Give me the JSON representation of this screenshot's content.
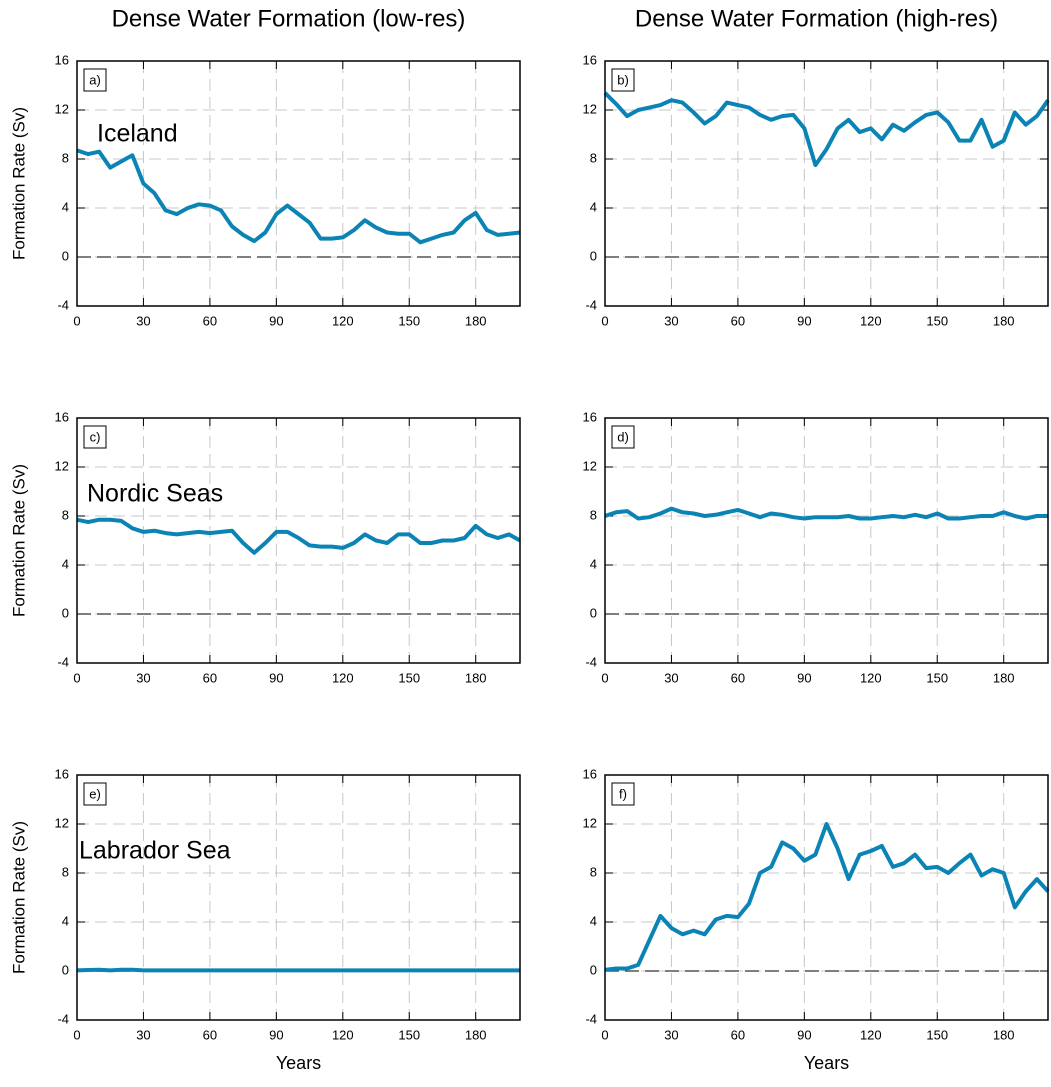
{
  "chart_data": [
    {
      "type": "line",
      "title": "Dense Water Formation (low-res)",
      "panel_label": "a)",
      "annotation": "Iceland",
      "ylabel": "Formation Rate (Sv)",
      "x": [
        0,
        5,
        10,
        15,
        20,
        25,
        30,
        35,
        40,
        45,
        50,
        55,
        60,
        65,
        70,
        75,
        80,
        85,
        90,
        95,
        100,
        105,
        110,
        115,
        120,
        125,
        130,
        135,
        140,
        145,
        150,
        155,
        160,
        165,
        170,
        175,
        180,
        185,
        190,
        195,
        200
      ],
      "series": [
        {
          "color": "#0b84b5",
          "values": [
            8.7,
            8.4,
            8.6,
            7.3,
            7.8,
            8.3,
            6.0,
            5.2,
            3.8,
            3.5,
            4.0,
            4.3,
            4.2,
            3.8,
            2.5,
            1.8,
            1.3,
            2.0,
            3.5,
            4.2,
            3.5,
            2.8,
            1.5,
            1.5,
            1.6,
            2.2,
            3.0,
            2.4,
            2.0,
            1.9,
            1.9,
            1.2,
            1.5,
            1.8,
            2.0,
            3.0,
            3.6,
            2.2,
            1.8,
            1.9,
            2.0
          ]
        }
      ],
      "xlim": [
        0,
        200
      ],
      "xticks": [
        0,
        30,
        60,
        90,
        120,
        150,
        180
      ],
      "ylim": [
        -4,
        16
      ],
      "yticks": [
        -4,
        0,
        4,
        8,
        12,
        16
      ],
      "grid": true,
      "reference_line": 0
    },
    {
      "type": "line",
      "title": "Dense Water Formation (high-res)",
      "panel_label": "b)",
      "x": [
        0,
        5,
        10,
        15,
        20,
        25,
        30,
        35,
        40,
        45,
        50,
        55,
        60,
        65,
        70,
        75,
        80,
        85,
        90,
        95,
        100,
        105,
        110,
        115,
        120,
        125,
        130,
        135,
        140,
        145,
        150,
        155,
        160,
        165,
        170,
        175,
        180,
        185,
        190,
        195,
        200
      ],
      "series": [
        {
          "color": "#0b84b5",
          "values": [
            13.4,
            12.5,
            11.5,
            12.0,
            12.2,
            12.4,
            12.8,
            12.6,
            11.8,
            10.9,
            11.5,
            12.6,
            12.4,
            12.2,
            11.6,
            11.2,
            11.5,
            11.6,
            10.5,
            7.5,
            8.8,
            10.5,
            11.2,
            10.2,
            10.5,
            9.6,
            10.8,
            10.3,
            11.0,
            11.6,
            11.8,
            11.0,
            9.5,
            9.5,
            11.2,
            9.0,
            9.5,
            11.8,
            10.8,
            11.5,
            12.8
          ]
        }
      ],
      "xlim": [
        0,
        200
      ],
      "xticks": [
        0,
        30,
        60,
        90,
        120,
        150,
        180
      ],
      "ylim": [
        -4,
        16
      ],
      "yticks": [
        -4,
        0,
        4,
        8,
        12,
        16
      ],
      "grid": true,
      "reference_line": 0
    },
    {
      "type": "line",
      "panel_label": "c)",
      "annotation": "Nordic Seas",
      "ylabel": "Formation Rate (Sv)",
      "x": [
        0,
        5,
        10,
        15,
        20,
        25,
        30,
        35,
        40,
        45,
        50,
        55,
        60,
        65,
        70,
        75,
        80,
        85,
        90,
        95,
        100,
        105,
        110,
        115,
        120,
        125,
        130,
        135,
        140,
        145,
        150,
        155,
        160,
        165,
        170,
        175,
        180,
        185,
        190,
        195,
        200
      ],
      "series": [
        {
          "color": "#0b84b5",
          "values": [
            7.7,
            7.5,
            7.7,
            7.7,
            7.6,
            7.0,
            6.7,
            6.8,
            6.6,
            6.5,
            6.6,
            6.7,
            6.6,
            6.7,
            6.8,
            5.8,
            5.0,
            5.8,
            6.7,
            6.7,
            6.2,
            5.6,
            5.5,
            5.5,
            5.4,
            5.8,
            6.5,
            6.0,
            5.8,
            6.5,
            6.5,
            5.8,
            5.8,
            6.0,
            6.0,
            6.2,
            7.2,
            6.5,
            6.2,
            6.5,
            6.0
          ]
        }
      ],
      "xlim": [
        0,
        200
      ],
      "xticks": [
        0,
        30,
        60,
        90,
        120,
        150,
        180
      ],
      "ylim": [
        -4,
        16
      ],
      "yticks": [
        -4,
        0,
        4,
        8,
        12,
        16
      ],
      "grid": true,
      "reference_line": 0
    },
    {
      "type": "line",
      "panel_label": "d)",
      "x": [
        0,
        5,
        10,
        15,
        20,
        25,
        30,
        35,
        40,
        45,
        50,
        55,
        60,
        65,
        70,
        75,
        80,
        85,
        90,
        95,
        100,
        105,
        110,
        115,
        120,
        125,
        130,
        135,
        140,
        145,
        150,
        155,
        160,
        165,
        170,
        175,
        180,
        185,
        190,
        195,
        200
      ],
      "series": [
        {
          "color": "#0b84b5",
          "values": [
            8.0,
            8.3,
            8.4,
            7.8,
            7.9,
            8.2,
            8.6,
            8.3,
            8.2,
            8.0,
            8.1,
            8.3,
            8.5,
            8.2,
            7.9,
            8.2,
            8.1,
            7.9,
            7.8,
            7.9,
            7.9,
            7.9,
            8.0,
            7.8,
            7.8,
            7.9,
            8.0,
            7.9,
            8.1,
            7.9,
            8.2,
            7.8,
            7.8,
            7.9,
            8.0,
            8.0,
            8.3,
            8.0,
            7.8,
            8.0,
            8.0
          ]
        }
      ],
      "xlim": [
        0,
        200
      ],
      "xticks": [
        0,
        30,
        60,
        90,
        120,
        150,
        180
      ],
      "ylim": [
        -4,
        16
      ],
      "yticks": [
        -4,
        0,
        4,
        8,
        12,
        16
      ],
      "grid": true,
      "reference_line": 0
    },
    {
      "type": "line",
      "panel_label": "e)",
      "annotation": "Labrador Sea",
      "ylabel": "Formation Rate (Sv)",
      "xlabel": "Years",
      "x": [
        0,
        5,
        10,
        15,
        20,
        25,
        30,
        35,
        40,
        45,
        50,
        55,
        60,
        65,
        70,
        75,
        80,
        85,
        90,
        95,
        100,
        105,
        110,
        115,
        120,
        125,
        130,
        135,
        140,
        145,
        150,
        155,
        160,
        165,
        170,
        175,
        180,
        185,
        190,
        195,
        200
      ],
      "series": [
        {
          "color": "#0b84b5",
          "values": [
            0.05,
            0.08,
            0.1,
            0.05,
            0.1,
            0.1,
            0.05,
            0.05,
            0.05,
            0.05,
            0.05,
            0.05,
            0.05,
            0.05,
            0.05,
            0.05,
            0.05,
            0.05,
            0.05,
            0.05,
            0.05,
            0.05,
            0.05,
            0.05,
            0.05,
            0.05,
            0.05,
            0.05,
            0.05,
            0.05,
            0.05,
            0.05,
            0.05,
            0.05,
            0.05,
            0.05,
            0.05,
            0.05,
            0.05,
            0.05,
            0.05
          ]
        }
      ],
      "xlim": [
        0,
        200
      ],
      "xticks": [
        0,
        30,
        60,
        90,
        120,
        150,
        180
      ],
      "ylim": [
        -4,
        16
      ],
      "yticks": [
        -4,
        0,
        4,
        8,
        12,
        16
      ],
      "grid": true,
      "reference_line": 0
    },
    {
      "type": "line",
      "panel_label": "f)",
      "xlabel": "Years",
      "x": [
        0,
        5,
        10,
        15,
        20,
        25,
        30,
        35,
        40,
        45,
        50,
        55,
        60,
        65,
        70,
        75,
        80,
        85,
        90,
        95,
        100,
        105,
        110,
        115,
        120,
        125,
        130,
        135,
        140,
        145,
        150,
        155,
        160,
        165,
        170,
        175,
        180,
        185,
        190,
        195,
        200
      ],
      "series": [
        {
          "color": "#0b84b5",
          "values": [
            0.1,
            0.2,
            0.2,
            0.5,
            2.5,
            4.5,
            3.5,
            3.0,
            3.3,
            3.0,
            4.2,
            4.5,
            4.4,
            5.5,
            8.0,
            8.5,
            10.5,
            10.0,
            9.0,
            9.5,
            12.0,
            10.0,
            7.5,
            9.5,
            9.8,
            10.2,
            8.5,
            8.8,
            9.5,
            8.4,
            8.5,
            8.0,
            8.8,
            9.5,
            7.8,
            8.3,
            8.0,
            5.2,
            6.5,
            7.5,
            6.5
          ]
        }
      ],
      "xlim": [
        0,
        200
      ],
      "xticks": [
        0,
        30,
        60,
        90,
        120,
        150,
        180
      ],
      "ylim": [
        -4,
        16
      ],
      "yticks": [
        -4,
        0,
        4,
        8,
        12,
        16
      ],
      "grid": true,
      "reference_line": 0
    }
  ]
}
